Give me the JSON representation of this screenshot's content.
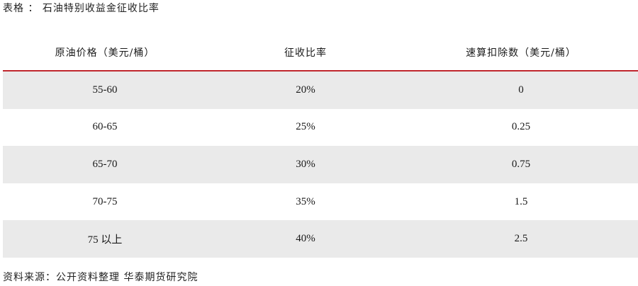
{
  "caption": "表格 ： 石油特别收益金征收比率",
  "table": {
    "headers": [
      "原油价格（美元/桶）",
      "征收比率",
      "速算扣除数（美元/桶）"
    ],
    "rows": [
      [
        "55-60",
        "20%",
        "0"
      ],
      [
        "60-65",
        "25%",
        "0.25"
      ],
      [
        "65-70",
        "30%",
        "0.75"
      ],
      [
        "70-75",
        "35%",
        "1.5"
      ],
      [
        "75 以上",
        "40%",
        "2.5"
      ]
    ]
  },
  "footer": "资料来源：公开资料整理 华泰期货研究院",
  "colors": {
    "header_rule": "#c0262d",
    "row_shade": "#eaeaea"
  }
}
